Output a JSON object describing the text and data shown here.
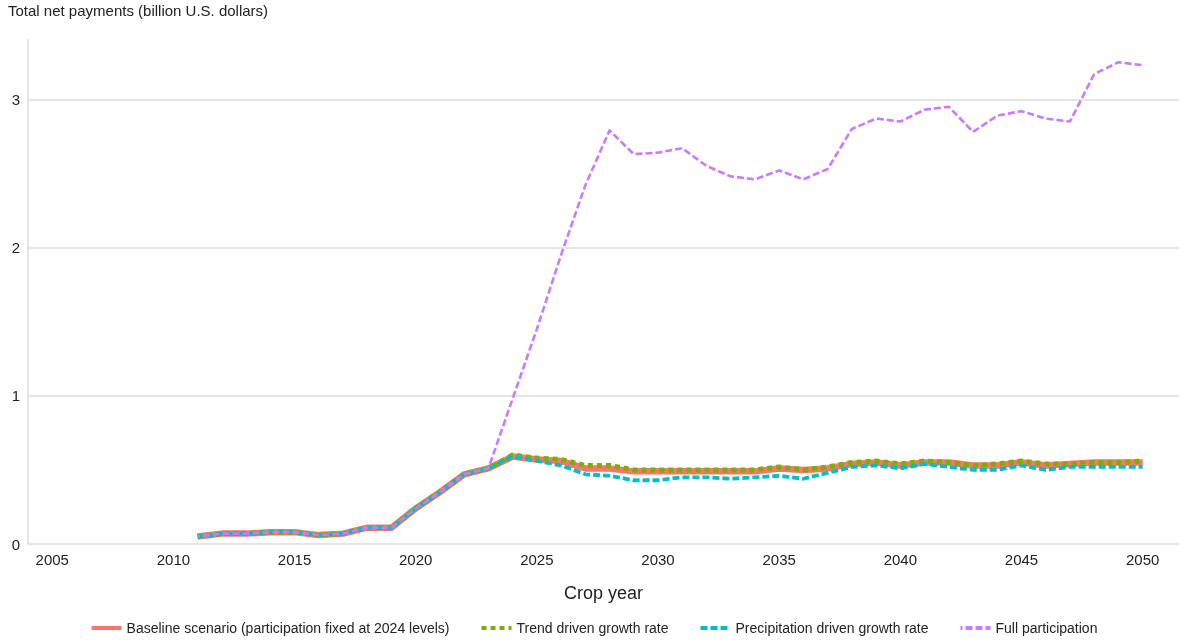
{
  "chart_data": {
    "type": "line",
    "ylabel": "Total net payments (billion U.S. dollars)",
    "xlabel": "Crop year",
    "x": [
      2011,
      2012,
      2013,
      2014,
      2015,
      2016,
      2017,
      2018,
      2019,
      2020,
      2021,
      2022,
      2023,
      2024,
      2025,
      2026,
      2027,
      2028,
      2029,
      2030,
      2031,
      2032,
      2033,
      2034,
      2035,
      2036,
      2037,
      2038,
      2039,
      2040,
      2041,
      2042,
      2043,
      2044,
      2045,
      2046,
      2047,
      2048,
      2049,
      2050
    ],
    "xlim": [
      2004,
      2051.5
    ],
    "xticks": [
      2005,
      2010,
      2015,
      2020,
      2025,
      2030,
      2035,
      2040,
      2045,
      2050
    ],
    "ylim": [
      0,
      3.4
    ],
    "yticks": [
      0,
      1,
      2,
      3
    ],
    "grid": "y",
    "legend": "bottom",
    "marker": "none",
    "series": [
      {
        "name": "Baseline scenario (participation fixed at 2024 levels)",
        "color": "#f8766d",
        "line_style": "solid",
        "values": [
          0.05,
          0.07,
          0.07,
          0.08,
          0.08,
          0.06,
          0.07,
          0.11,
          0.11,
          0.24,
          0.35,
          0.47,
          0.51,
          0.59,
          0.57,
          0.56,
          0.51,
          0.51,
          0.49,
          0.49,
          0.49,
          0.49,
          0.49,
          0.49,
          0.51,
          0.5,
          0.51,
          0.54,
          0.55,
          0.53,
          0.55,
          0.55,
          0.53,
          0.53,
          0.55,
          0.53,
          0.54,
          0.55,
          0.55,
          0.55
        ]
      },
      {
        "name": "Trend driven growth rate",
        "color": "#7cae00",
        "line_style": "dotted",
        "values": [
          0.05,
          0.07,
          0.07,
          0.08,
          0.08,
          0.06,
          0.07,
          0.11,
          0.11,
          0.24,
          0.35,
          0.47,
          0.51,
          0.6,
          0.58,
          0.57,
          0.53,
          0.53,
          0.5,
          0.5,
          0.5,
          0.5,
          0.5,
          0.5,
          0.52,
          0.5,
          0.52,
          0.55,
          0.56,
          0.54,
          0.56,
          0.55,
          0.53,
          0.54,
          0.56,
          0.54,
          0.54,
          0.55,
          0.55,
          0.56
        ]
      },
      {
        "name": "Precipitation driven growth rate",
        "color": "#00bfc4",
        "line_style": "dashed",
        "values": [
          0.05,
          0.07,
          0.07,
          0.08,
          0.08,
          0.06,
          0.07,
          0.11,
          0.11,
          0.24,
          0.35,
          0.47,
          0.51,
          0.59,
          0.56,
          0.53,
          0.47,
          0.46,
          0.43,
          0.43,
          0.45,
          0.45,
          0.44,
          0.45,
          0.46,
          0.44,
          0.48,
          0.52,
          0.53,
          0.51,
          0.54,
          0.52,
          0.5,
          0.5,
          0.53,
          0.5,
          0.52,
          0.52,
          0.52,
          0.52
        ]
      },
      {
        "name": "Full participation",
        "color": "#c77cff",
        "line_style": "dashed",
        "values": [
          0.05,
          0.07,
          0.07,
          0.08,
          0.08,
          0.06,
          0.07,
          0.11,
          0.11,
          0.24,
          0.35,
          0.47,
          0.51,
          0.98,
          1.45,
          1.95,
          2.42,
          2.79,
          2.63,
          2.64,
          2.67,
          2.55,
          2.48,
          2.46,
          2.52,
          2.46,
          2.53,
          2.8,
          2.87,
          2.85,
          2.93,
          2.95,
          2.78,
          2.89,
          2.92,
          2.87,
          2.85,
          3.17,
          3.25,
          3.23
        ]
      }
    ]
  }
}
